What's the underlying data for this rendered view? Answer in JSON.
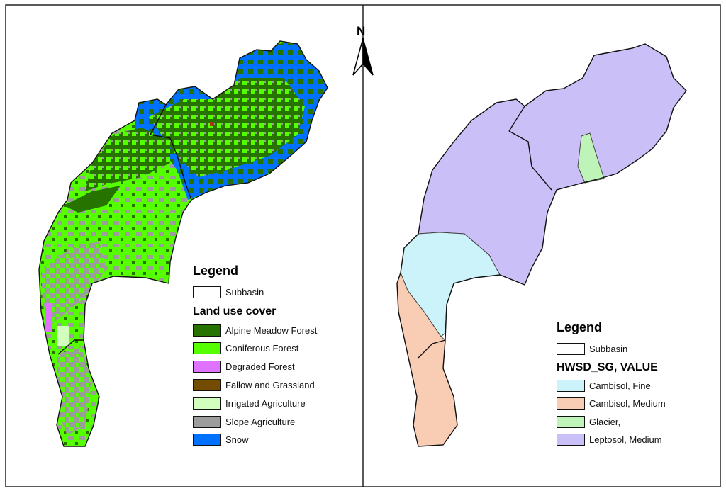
{
  "north_arrow": {
    "label": "N"
  },
  "left_map": {
    "legend_title": "Legend",
    "subbasin_label": "Subbasin",
    "section_title": "Land use cover",
    "classes": [
      {
        "label": "Alpine Meadow Forest",
        "color": "#267300"
      },
      {
        "label": "Coniferous Forest",
        "color": "#55ff00"
      },
      {
        "label": "Degraded Forest",
        "color": "#df73ff"
      },
      {
        "label": "Fallow and Grassland",
        "color": "#734c00"
      },
      {
        "label": "Irrigated Agriculture",
        "color": "#d3ffbe"
      },
      {
        "label": "Slope Agriculture",
        "color": "#9c9c9c"
      },
      {
        "label": "Snow",
        "color": "#0070ff"
      }
    ]
  },
  "right_map": {
    "legend_title": "Legend",
    "subbasin_label": "Subbasin",
    "section_title": "HWSD_SG, VALUE",
    "classes": [
      {
        "label": "Cambisol, Fine",
        "color": "#ccf3fa"
      },
      {
        "label": "Cambisol, Medium",
        "color": "#f9cdb3"
      },
      {
        "label": "Glacier,",
        "color": "#bff4b8"
      },
      {
        "label": "Leptosol, Medium",
        "color": "#cbbff7"
      }
    ]
  }
}
